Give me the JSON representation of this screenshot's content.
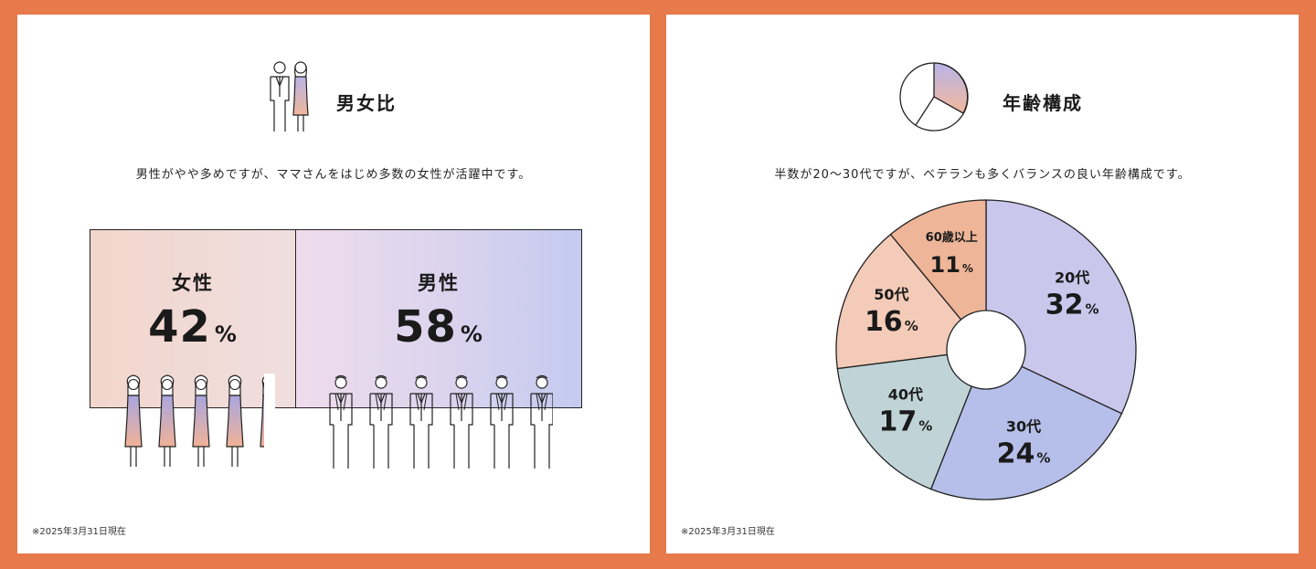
{
  "gender": {
    "title": "男女比",
    "subtitle": "男性がやや多めですが、ママさんをはじめ多数の女性が活躍中です。",
    "female_label": "女性",
    "female_value": "42",
    "male_label": "男性",
    "male_value": "58",
    "percent_sign": "%",
    "footnote": "※2025年3月31日現在",
    "icon": "couple-icon"
  },
  "age": {
    "title": "年齢構成",
    "subtitle": "半数が20〜30代ですが、ベテランも多くバランスの良い年齢構成です。",
    "footnote": "※2025年3月31日現在",
    "icon": "pie-chart-icon"
  },
  "chart_data": [
    {
      "type": "bar",
      "categories": [
        "女性",
        "男性"
      ],
      "values": [
        42,
        58
      ],
      "unit": "%",
      "colors": [
        "#f2d6cc",
        "#c4caf0"
      ]
    },
    {
      "type": "pie",
      "categories": [
        "20代",
        "30代",
        "40代",
        "50代",
        "60歳以上"
      ],
      "values": [
        32,
        24,
        17,
        16,
        11
      ],
      "unit": "%",
      "colors": [
        "#cbc6ec",
        "#b6bfe9",
        "#c0d4d8",
        "#f3cbb8",
        "#eeb598"
      ]
    }
  ]
}
